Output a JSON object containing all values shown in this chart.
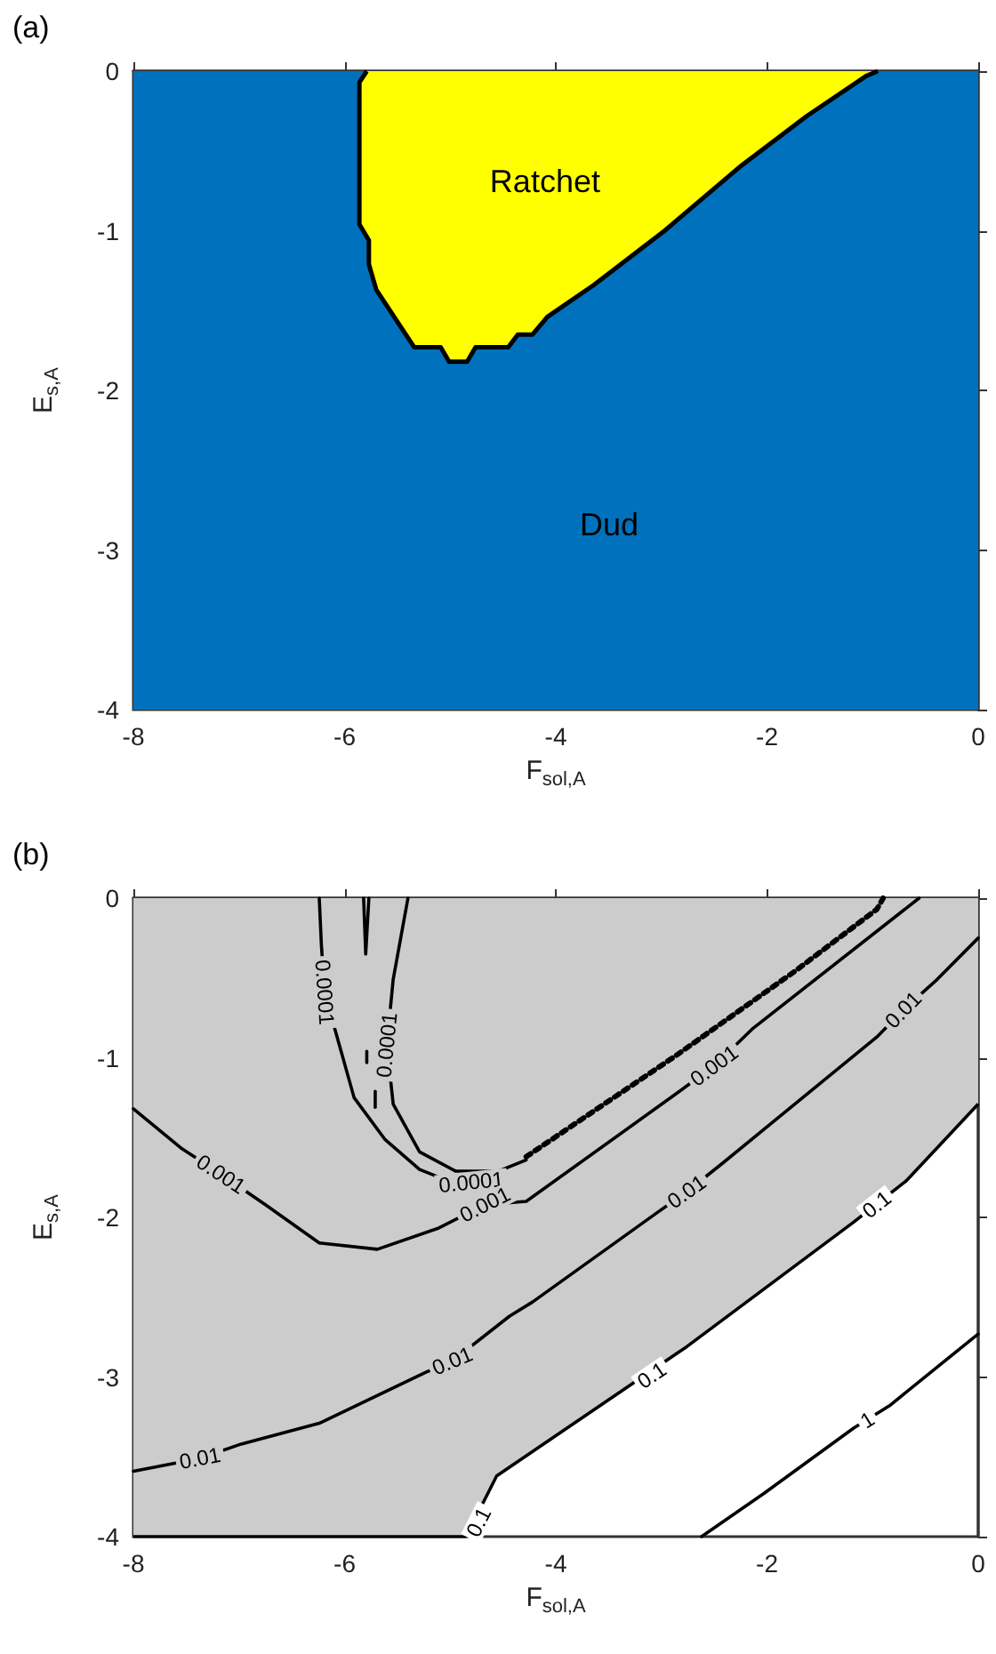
{
  "chart_data": [
    {
      "type": "area",
      "title": "(a)",
      "xlabel": "F$_{sol,A}$",
      "ylabel": "E$_{s,A}$",
      "xlim": [
        -8,
        0
      ],
      "ylim": [
        -4,
        0
      ],
      "xticks": [
        -8,
        -6,
        -4,
        -2,
        0
      ],
      "yticks": [
        -4,
        -3,
        -2,
        -1,
        0
      ],
      "bands": [
        {
          "axis": "y",
          "from": -4,
          "to": 0,
          "color": "#0072bd",
          "label": "Dud"
        }
      ],
      "series": [
        {
          "name": "Ratchet",
          "color": "#ffff00",
          "x": [
            -5.79,
            -5.86,
            -5.86,
            -5.77,
            -5.77,
            -5.7,
            -5.34,
            -5.09,
            -5.01,
            -4.84,
            -4.76,
            -4.45,
            -4.36,
            -4.22,
            -4.08,
            -3.64,
            -2.97,
            -2.24,
            -1.62,
            -1.06,
            -0.95
          ],
          "values": [
            0,
            -0.07,
            -0.96,
            -1.06,
            -1.21,
            -1.37,
            -1.73,
            -1.73,
            -1.82,
            -1.82,
            -1.73,
            -1.73,
            -1.65,
            -1.65,
            -1.54,
            -1.34,
            -1.0,
            -0.59,
            -0.28,
            -0.03,
            0
          ]
        }
      ]
    },
    {
      "type": "line",
      "title": "(b)",
      "xlabel": "F$_{sol,A}$",
      "ylabel": "E$_{s,A}$",
      "xlim": [
        -8,
        0
      ],
      "ylim": [
        -4,
        0
      ],
      "xticks": [
        -8,
        -6,
        -4,
        -2,
        0
      ],
      "yticks": [
        -4,
        -3,
        -2,
        -1,
        0
      ],
      "series": [
        {
          "type": "area",
          "color": "#cccccc",
          "x": [
            -8,
            -4.85,
            -4.56,
            -2.76,
            -1.18,
            -0.68,
            0
          ],
          "values": [
            -4,
            -4,
            -3.62,
            -2.81,
            -2.03,
            -1.77,
            -1.29
          ]
        },
        {
          "color": "#000000",
          "x": [
            -2.62,
            -2.03,
            -1.18,
            -0.84,
            0
          ],
          "values": [
            -4,
            -3.73,
            -3.32,
            -3.18,
            -2.73
          ]
        },
        {
          "color": "#000000",
          "x": [
            -8,
            -7.37,
            -6.98,
            -6.24,
            -5.23,
            -4.98,
            -4.44,
            -4.22,
            -3.04,
            -2.76,
            -2.42,
            -0.96,
            -0.71,
            -0.39,
            0
          ],
          "values": [
            -3.59,
            -3.51,
            -3.42,
            -3.29,
            -2.97,
            -2.9,
            -2.62,
            -2.53,
            -1.97,
            -1.84,
            -1.66,
            -0.87,
            -0.7,
            -0.51,
            -0.25
          ]
        },
        {
          "color": "#000000",
          "x": [
            -8,
            -7.54,
            -7.17,
            -6.75,
            -6.24,
            -5.69,
            -5.12,
            -4.67,
            -4.28,
            -2.87,
            -2.5,
            -2.14,
            -0.56
          ],
          "values": [
            -1.32,
            -1.57,
            -1.73,
            -1.92,
            -2.16,
            -2.2,
            -2.07,
            -1.92,
            -1.9,
            -1.23,
            -1.05,
            -0.82,
            0
          ]
        },
        {
          "color": "#000000",
          "x": [
            -6.24,
            -6.22,
            -6.19,
            -6.02,
            -5.91,
            -5.62,
            -5.29,
            -4.95,
            -4.8,
            -4.28
          ],
          "values": [
            0,
            -0.29,
            -0.59,
            -0.99,
            -1.25,
            -1.51,
            -1.7,
            -1.79,
            -1.78,
            -1.64
          ]
        },
        {
          "color": "#000000",
          "line_style": "dotted",
          "x": [
            -4.28,
            -2.87,
            -1.74,
            -0.96,
            -0.9
          ],
          "values": [
            -1.62,
            -0.99,
            -0.46,
            -0.07,
            0
          ]
        },
        {
          "color": "#000000",
          "x": [
            -5.4,
            -5.54,
            -5.6,
            -5.54,
            -5.29,
            -4.95,
            -4.56
          ],
          "values": [
            0,
            -0.51,
            -0.92,
            -1.29,
            -1.59,
            -1.71,
            -1.71
          ]
        },
        {
          "color": "#000000",
          "x": [
            -5.82,
            -5.8,
            -5.77
          ],
          "values": [
            0,
            -0.35,
            0
          ]
        },
        {
          "color": "#000000",
          "x": [
            -5.79,
            -5.79
          ],
          "values": [
            -0.96,
            -1.03
          ]
        },
        {
          "color": "#000000",
          "x": [
            -5.71,
            -5.71
          ],
          "values": [
            -1.21,
            -1.31
          ]
        }
      ],
      "annotations": [
        {
          "text": "0.0001",
          "x": -6.19,
          "y": -0.59
        },
        {
          "text": "0.0001",
          "x": -5.6,
          "y": -0.92
        },
        {
          "text": "0.0001",
          "x": -4.8,
          "y": -1.78
        },
        {
          "text": "0.001",
          "x": -7.17,
          "y": -1.73
        },
        {
          "text": "0.001",
          "x": -4.67,
          "y": -1.92
        },
        {
          "text": "0.001",
          "x": -2.5,
          "y": -1.05
        },
        {
          "text": "0.01",
          "x": -7.37,
          "y": -3.51
        },
        {
          "text": "0.01",
          "x": -4.98,
          "y": -2.9
        },
        {
          "text": "0.01",
          "x": -2.76,
          "y": -1.84
        },
        {
          "text": "0.01",
          "x": -0.71,
          "y": -0.7
        },
        {
          "text": "0.1",
          "x": -4.73,
          "y": -3.91
        },
        {
          "text": "0.1",
          "x": -3.09,
          "y": -2.99
        },
        {
          "text": "0.1",
          "x": -0.96,
          "y": -1.92
        },
        {
          "text": "1",
          "x": -1.05,
          "y": -3.27
        }
      ]
    }
  ]
}
